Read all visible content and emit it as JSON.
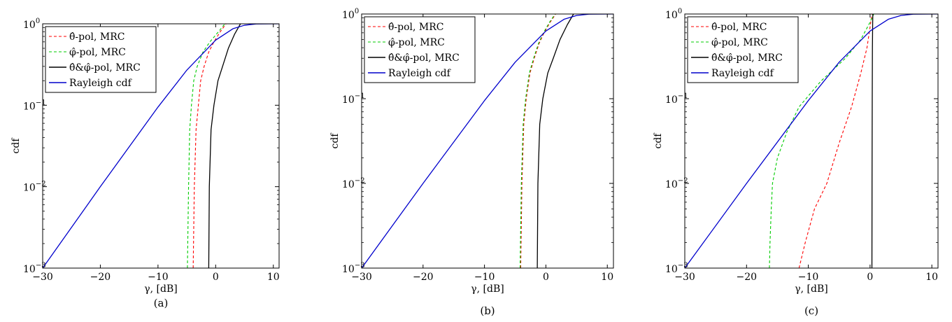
{
  "figure": {
    "panels": [
      "(a)",
      "(b)",
      "(c)"
    ]
  },
  "chart_data": [
    {
      "type": "line",
      "panel_label": "(a)",
      "xlabel": "γ, [dB]",
      "ylabel": "cdf",
      "xlim": [
        -30,
        11
      ],
      "ylim": [
        0.001,
        1
      ],
      "y_scale": "log",
      "x_ticks": [
        "−30",
        "−20",
        "−10",
        "0",
        "10"
      ],
      "x_tick_values": [
        -30,
        -20,
        -10,
        0,
        10
      ],
      "y_tick_values": [
        0.001,
        0.01,
        0.1,
        1
      ],
      "y_ticks": [
        {
          "base": "10",
          "exp": "−3"
        },
        {
          "base": "10",
          "exp": "−2"
        },
        {
          "base": "10",
          "exp": "−1"
        },
        {
          "base": "10",
          "exp": "0"
        }
      ],
      "legend_position": "top-left",
      "series": [
        {
          "name": "θ̂-pol, MRC",
          "color": "#ff0000",
          "dash": "dashed",
          "x": [
            -3.9,
            -3.7,
            -3.4,
            -3.0,
            -2.6,
            -2.0,
            -1.2,
            -0.3,
            0.8,
            1.8
          ],
          "y": [
            0.001,
            0.01,
            0.05,
            0.1,
            0.2,
            0.3,
            0.45,
            0.6,
            0.8,
            1
          ]
        },
        {
          "name": "φ̂-pol, MRC",
          "color": "#00cc00",
          "dash": "dashed",
          "x": [
            -4.9,
            -4.7,
            -4.5,
            -4.2,
            -3.8,
            -3.2,
            -2.2,
            -1.0,
            0.5,
            1.6
          ],
          "y": [
            0.001,
            0.01,
            0.05,
            0.1,
            0.2,
            0.3,
            0.45,
            0.6,
            0.8,
            1
          ]
        },
        {
          "name": "θ̂&φ̂-pol, MRC",
          "color": "#000000",
          "dash": "solid",
          "x": [
            -1.2,
            -1.1,
            -0.8,
            -0.3,
            0.4,
            1.2,
            2.2,
            3.3,
            4.3
          ],
          "y": [
            0.001,
            0.01,
            0.05,
            0.1,
            0.2,
            0.3,
            0.5,
            0.75,
            1
          ]
        },
        {
          "name": "Rayleigh cdf",
          "color": "#0000cc",
          "dash": "solid",
          "x": [
            -30,
            -20,
            -10,
            -5,
            0,
            3,
            5,
            7,
            11
          ],
          "y": [
            0.001,
            0.01,
            0.095,
            0.27,
            0.63,
            0.87,
            0.96,
            0.995,
            1
          ]
        }
      ]
    },
    {
      "type": "line",
      "panel_label": "(b)",
      "xlabel": "γ, [dB]",
      "ylabel": "cdf",
      "xlim": [
        -30,
        11
      ],
      "ylim": [
        0.001,
        1
      ],
      "y_scale": "log",
      "x_ticks": [
        "−30",
        "−20",
        "−10",
        "0",
        "10"
      ],
      "x_tick_values": [
        -30,
        -20,
        -10,
        0,
        10
      ],
      "y_tick_values": [
        0.001,
        0.01,
        0.1,
        1
      ],
      "y_ticks": [
        {
          "base": "10",
          "exp": "−3"
        },
        {
          "base": "10",
          "exp": "−2"
        },
        {
          "base": "10",
          "exp": "−1"
        },
        {
          "base": "10",
          "exp": "0"
        }
      ],
      "legend_position": "top-left",
      "series": [
        {
          "name": "θ̂-pol, MRC",
          "color": "#ff0000",
          "dash": "dashed",
          "x": [
            -4.1,
            -3.9,
            -3.6,
            -3.2,
            -2.6,
            -1.9,
            -1.1,
            -0.3,
            0.7,
            1.6
          ],
          "y": [
            0.001,
            0.01,
            0.05,
            0.1,
            0.2,
            0.3,
            0.45,
            0.6,
            0.8,
            1
          ]
        },
        {
          "name": "φ̂-pol, MRC",
          "color": "#00cc00",
          "dash": "dashed",
          "x": [
            -4.2,
            -4.0,
            -3.7,
            -3.3,
            -2.7,
            -2.0,
            -1.2,
            -0.4,
            0.6,
            1.5
          ],
          "y": [
            0.001,
            0.01,
            0.05,
            0.1,
            0.2,
            0.3,
            0.45,
            0.6,
            0.8,
            1
          ]
        },
        {
          "name": "θ̂&φ̂-pol, MRC",
          "color": "#000000",
          "dash": "solid",
          "x": [
            -1.4,
            -1.3,
            -1.0,
            -0.5,
            0.3,
            1.2,
            2.3,
            3.5,
            4.5
          ],
          "y": [
            0.001,
            0.01,
            0.05,
            0.1,
            0.2,
            0.3,
            0.5,
            0.75,
            1
          ]
        },
        {
          "name": "Rayleigh cdf",
          "color": "#0000cc",
          "dash": "solid",
          "x": [
            -30,
            -20,
            -10,
            -5,
            0,
            3,
            5,
            7,
            11
          ],
          "y": [
            0.001,
            0.01,
            0.095,
            0.27,
            0.63,
            0.87,
            0.96,
            0.995,
            1
          ]
        }
      ]
    },
    {
      "type": "line",
      "panel_label": "(c)",
      "xlabel": "γ, [dB]",
      "ylabel": "cdf",
      "xlim": [
        -30,
        11
      ],
      "ylim": [
        0.001,
        1
      ],
      "y_scale": "log",
      "x_ticks": [
        "−30",
        "−20",
        "−10",
        "0",
        "10"
      ],
      "x_tick_values": [
        -30,
        -20,
        -10,
        0,
        10
      ],
      "y_tick_values": [
        0.001,
        0.01,
        0.1,
        1
      ],
      "y_ticks": [
        {
          "base": "10",
          "exp": "−3"
        },
        {
          "base": "10",
          "exp": "−2"
        },
        {
          "base": "10",
          "exp": "−1"
        },
        {
          "base": "10",
          "exp": "0"
        }
      ],
      "legend_position": "top-left",
      "series": [
        {
          "name": "θ̂-pol, MRC",
          "color": "#ff0000",
          "dash": "dashed",
          "x": [
            -11.5,
            -10.5,
            -9.0,
            -7.0,
            -5.0,
            -3.0,
            -1.5,
            -0.5,
            0.0,
            0.3
          ],
          "y": [
            0.001,
            0.002,
            0.005,
            0.01,
            0.03,
            0.08,
            0.2,
            0.4,
            0.7,
            1
          ]
        },
        {
          "name": "φ̂-pol, MRC",
          "color": "#00cc00",
          "dash": "dashed",
          "x": [
            -16.3,
            -16.2,
            -16.0,
            -15.8,
            -15.0,
            -13.5,
            -11.5,
            -8.0,
            -4.0,
            -1.5,
            0.0,
            0.6
          ],
          "y": [
            0.001,
            0.002,
            0.005,
            0.01,
            0.02,
            0.04,
            0.08,
            0.16,
            0.3,
            0.5,
            0.8,
            1
          ]
        },
        {
          "name": "θ̂&φ̂-pol, MRC",
          "color": "#000000",
          "dash": "solid",
          "x": [
            0.3,
            0.32,
            0.35,
            0.38,
            0.42,
            0.45
          ],
          "y": [
            0.001,
            0.01,
            0.1,
            0.4,
            0.8,
            1
          ]
        },
        {
          "name": "Rayleigh cdf",
          "color": "#0000cc",
          "dash": "solid",
          "x": [
            -30,
            -20,
            -10,
            -5,
            0,
            3,
            5,
            7,
            11
          ],
          "y": [
            0.001,
            0.01,
            0.095,
            0.27,
            0.63,
            0.87,
            0.96,
            0.995,
            1
          ]
        }
      ]
    }
  ]
}
